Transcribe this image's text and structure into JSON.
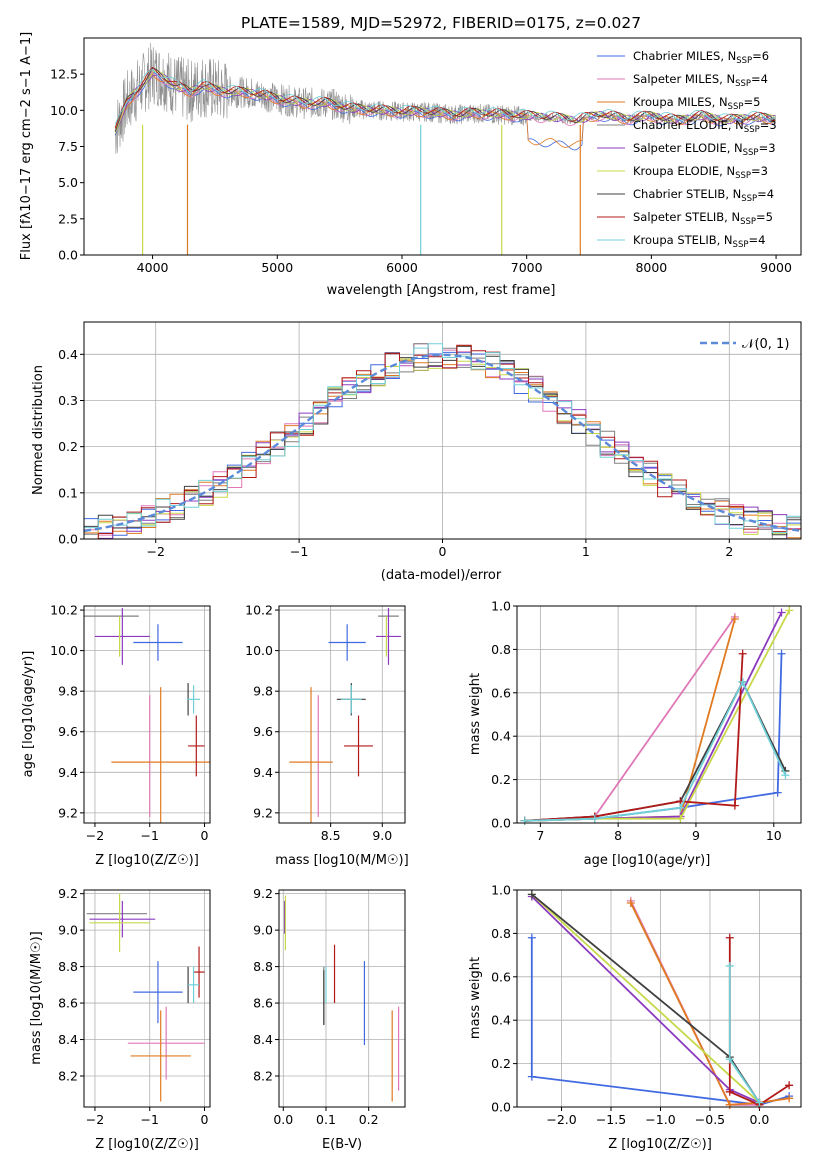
{
  "colors": {
    "c0": "#4169e1",
    "c1": "#e078b8",
    "c2": "#e07a20",
    "c3": "#808080",
    "c4": "#8b3ac0",
    "c5": "#c8d84a",
    "c6": "#404040",
    "c7": "#b21a1a",
    "c8": "#70d0d8"
  },
  "chart_data": [
    {
      "type": "line",
      "title": "PLATE=1589, MJD=52972, FIBERID=0175, z=0.027",
      "xlabel": "wavelength [Angstrom, rest frame]",
      "ylabel": "Flux [fλ10−17 erg cm−2 s−1 A−1]",
      "xlim": [
        3450,
        9200
      ],
      "ylim": [
        0,
        15
      ],
      "xticks": [
        4000,
        5000,
        6000,
        7000,
        8000,
        9000
      ],
      "yticks": [
        0.0,
        2.5,
        5.0,
        7.5,
        10.0,
        12.5
      ],
      "xtick_labels": [
        "4000",
        "5000",
        "6000",
        "7000",
        "8000",
        "9000"
      ],
      "ytick_labels": [
        "0.0",
        "2.5",
        "5.0",
        "7.5",
        "10.0",
        "12.5"
      ],
      "legend_position": "right",
      "series_names": [
        "Chabrier MILES, N_SSP=6",
        "Salpeter MILES, N_SSP=4",
        "Kroupa MILES, N_SSP=5",
        "Chabrier ELODIE, N_SSP=3",
        "Salpeter ELODIE, N_SSP=3",
        "Kroupa ELODIE, N_SSP=3",
        "Chabrier STELIB, N_SSP=4",
        "Salpeter STELIB, N_SSP=5",
        "Kroupa STELIB, N_SSP=4"
      ],
      "legend_entries": [
        {
          "name": "Chabrier MILES, N",
          "sub": "SSP",
          "val": "=6"
        },
        {
          "name": "Salpeter MILES, N",
          "sub": "SSP",
          "val": "=4"
        },
        {
          "name": "Kroupa MILES, N",
          "sub": "SSP",
          "val": "=5"
        },
        {
          "name": "Chabrier ELODIE, N",
          "sub": "SSP",
          "val": "=3"
        },
        {
          "name": "Salpeter ELODIE, N",
          "sub": "SSP",
          "val": "=3"
        },
        {
          "name": "Kroupa ELODIE, N",
          "sub": "SSP",
          "val": "=3"
        },
        {
          "name": "Chabrier STELIB, N",
          "sub": "SSP",
          "val": "=4"
        },
        {
          "name": "Salpeter STELIB, N",
          "sub": "SSP",
          "val": "=5"
        },
        {
          "name": "Kroupa STELIB, N",
          "sub": "SSP",
          "val": "=4"
        }
      ],
      "model_flux_anchors_x": [
        3700,
        3800,
        3900,
        4000,
        4100,
        4200,
        4300,
        4400,
        4500,
        4600,
        4800,
        5000,
        5200,
        5400,
        5600,
        5800,
        6000,
        6200,
        6400,
        6600,
        6800,
        7000,
        7200,
        7400,
        7600,
        7800,
        8000,
        8200,
        8400,
        8600,
        8800,
        9000
      ],
      "model_flux_anchors_y": [
        8.6,
        10.6,
        11.6,
        12.6,
        12.2,
        11.6,
        11.3,
        11.7,
        11.4,
        11.3,
        11.2,
        10.8,
        10.5,
        10.5,
        10.1,
        10.0,
        9.9,
        9.9,
        9.7,
        9.8,
        9.7,
        9.6,
        9.5,
        9.3,
        9.7,
        9.4,
        9.6,
        9.3,
        9.6,
        9.3,
        9.5,
        9.4
      ]
    },
    {
      "type": "histogram",
      "xlabel": "(data-model)/error",
      "ylabel": "Normed distribution",
      "xlim": [
        -2.5,
        2.5
      ],
      "ylim": [
        0,
        0.47
      ],
      "xticks": [
        -2,
        -1,
        0,
        1,
        2
      ],
      "yticks": [
        0.0,
        0.1,
        0.2,
        0.3,
        0.4
      ],
      "xtick_labels": [
        "−2",
        "−1",
        "0",
        "1",
        "2"
      ],
      "ytick_labels": [
        "0.0",
        "0.1",
        "0.2",
        "0.3",
        "0.4"
      ],
      "reference_curve": "N(0,1)",
      "legend_label": "𝒩(0, 1)",
      "bin_width": 0.1
    },
    {
      "type": "scatter",
      "xlabel": "Z [log10(Z/Z☉)]",
      "ylabel": "age [log10(age/yr)]",
      "xlim": [
        -2.2,
        0.1
      ],
      "ylim": [
        9.15,
        10.22
      ],
      "xticks": [
        -2,
        -1,
        0
      ],
      "yticks": [
        9.2,
        9.4,
        9.6,
        9.8,
        10.0,
        10.2
      ],
      "xtick_labels": [
        "−2",
        "−1",
        "0"
      ],
      "ytick_labels": [
        "9.2",
        "9.4",
        "9.6",
        "9.8",
        "10.0",
        "10.2"
      ],
      "points": [
        {
          "x": -0.85,
          "y": 10.04,
          "xerr": 0.45,
          "yerr": 0.09,
          "c": "c0"
        },
        {
          "x": -1.0,
          "y": 9.48,
          "xerr": 0.0,
          "yerr": 0.3,
          "c": "c1"
        },
        {
          "x": -0.8,
          "y": 9.45,
          "xerr": 0.9,
          "yerr": 0.37,
          "c": "c2"
        },
        {
          "x": -1.75,
          "y": 10.17,
          "xerr": 0.55,
          "yerr": 0.0,
          "c": "c3"
        },
        {
          "x": -1.5,
          "y": 10.07,
          "xerr": 0.5,
          "yerr": 0.14,
          "c": "c4"
        },
        {
          "x": -1.55,
          "y": 10.07,
          "xerr": 0.0,
          "yerr": 0.1,
          "c": "c5"
        },
        {
          "x": -0.3,
          "y": 9.76,
          "xerr": 0.0,
          "yerr": 0.08,
          "c": "c6"
        },
        {
          "x": -0.15,
          "y": 9.53,
          "xerr": 0.15,
          "yerr": 0.15,
          "c": "c7"
        },
        {
          "x": -0.2,
          "y": 9.76,
          "xerr": 0.12,
          "yerr": 0.07,
          "c": "c8"
        }
      ]
    },
    {
      "type": "scatter",
      "xlabel": "mass [log10(M/M☉)]",
      "ylabel": "",
      "xlim": [
        8.0,
        9.22
      ],
      "ylim": [
        9.15,
        10.22
      ],
      "xticks": [
        8.5,
        9.0
      ],
      "yticks": [
        9.2,
        9.4,
        9.6,
        9.8,
        10.0,
        10.2
      ],
      "xtick_labels": [
        "8.5",
        "9.0"
      ],
      "ytick_labels": [
        "9.2",
        "9.4",
        "9.6",
        "9.8",
        "10.0",
        "10.2"
      ],
      "points": [
        {
          "x": 8.66,
          "y": 10.04,
          "xerr": 0.18,
          "yerr": 0.09,
          "c": "c0"
        },
        {
          "x": 8.38,
          "y": 9.48,
          "xerr": 0.0,
          "yerr": 0.3,
          "c": "c1"
        },
        {
          "x": 8.31,
          "y": 9.45,
          "xerr": 0.21,
          "yerr": 0.37,
          "c": "c2"
        },
        {
          "x": 9.06,
          "y": 10.17,
          "xerr": 0.1,
          "yerr": 0.0,
          "c": "c3"
        },
        {
          "x": 9.06,
          "y": 10.07,
          "xerr": 0.12,
          "yerr": 0.14,
          "c": "c4"
        },
        {
          "x": 9.04,
          "y": 10.07,
          "xerr": 0.0,
          "yerr": 0.1,
          "c": "c5"
        },
        {
          "x": 8.7,
          "y": 9.76,
          "xerr": 0.14,
          "yerr": 0.08,
          "c": "c6"
        },
        {
          "x": 8.77,
          "y": 9.53,
          "xerr": 0.14,
          "yerr": 0.15,
          "c": "c7"
        },
        {
          "x": 8.7,
          "y": 9.76,
          "xerr": 0.1,
          "yerr": 0.07,
          "c": "c8"
        }
      ]
    },
    {
      "type": "line",
      "xlabel": "age [log10(age/yr)]",
      "ylabel": "mass weight",
      "xlim": [
        6.7,
        10.35
      ],
      "ylim": [
        0,
        1.0
      ],
      "xticks": [
        7,
        8,
        9,
        10
      ],
      "yticks": [
        0.0,
        0.2,
        0.4,
        0.6,
        0.8,
        1.0
      ],
      "xtick_labels": [
        "7",
        "8",
        "9",
        "10"
      ],
      "ytick_labels": [
        "0.0",
        "0.2",
        "0.4",
        "0.6",
        "0.8",
        "1.0"
      ],
      "series": [
        {
          "c": "c0",
          "x": [
            6.8,
            7.7,
            8.8,
            10.05,
            10.1
          ],
          "y": [
            0.01,
            0.02,
            0.07,
            0.14,
            0.78
          ]
        },
        {
          "c": "c1",
          "x": [
            6.8,
            7.7,
            9.5
          ],
          "y": [
            0.01,
            0.03,
            0.95
          ]
        },
        {
          "c": "c2",
          "x": [
            6.8,
            7.7,
            8.8,
            9.5
          ],
          "y": [
            0.01,
            0.02,
            0.03,
            0.94
          ]
        },
        {
          "c": "c4",
          "x": [
            6.8,
            7.7,
            8.8,
            10.1
          ],
          "y": [
            0.01,
            0.02,
            0.03,
            0.97
          ]
        },
        {
          "c": "c5",
          "x": [
            6.8,
            7.7,
            8.8,
            10.2
          ],
          "y": [
            0.01,
            0.02,
            0.02,
            0.98
          ]
        },
        {
          "c": "c6",
          "x": [
            6.8,
            7.7,
            8.8,
            9.6,
            10.15
          ],
          "y": [
            0.01,
            0.03,
            0.1,
            0.65,
            0.24
          ]
        },
        {
          "c": "c7",
          "x": [
            6.8,
            7.7,
            8.8,
            9.5,
            9.6
          ],
          "y": [
            0.01,
            0.03,
            0.1,
            0.08,
            0.78
          ]
        },
        {
          "c": "c8",
          "x": [
            6.8,
            7.7,
            8.8,
            9.6,
            10.15
          ],
          "y": [
            0.01,
            0.02,
            0.07,
            0.65,
            0.22
          ]
        }
      ]
    },
    {
      "type": "scatter",
      "xlabel": "Z [log10(Z/Z☉)]",
      "ylabel": "mass [log10(M/M☉)]",
      "xlim": [
        -2.2,
        0.1
      ],
      "ylim": [
        8.03,
        9.22
      ],
      "xticks": [
        -2,
        -1,
        0
      ],
      "yticks": [
        8.2,
        8.4,
        8.6,
        8.8,
        9.0,
        9.2
      ],
      "xtick_labels": [
        "−2",
        "−1",
        "0"
      ],
      "ytick_labels": [
        "8.2",
        "8.4",
        "8.6",
        "8.8",
        "9.0",
        "9.2"
      ],
      "points": [
        {
          "x": -0.85,
          "y": 8.66,
          "xerr": 0.45,
          "yerr": 0.17,
          "c": "c0"
        },
        {
          "x": -0.7,
          "y": 8.38,
          "xerr": 0.7,
          "yerr": 0.2,
          "c": "c1"
        },
        {
          "x": -0.8,
          "y": 8.31,
          "xerr": 0.55,
          "yerr": 0.25,
          "c": "c2"
        },
        {
          "x": -1.6,
          "y": 9.09,
          "xerr": 0.55,
          "yerr": 0.0,
          "c": "c3"
        },
        {
          "x": -1.5,
          "y": 9.06,
          "xerr": 0.6,
          "yerr": 0.1,
          "c": "c4"
        },
        {
          "x": -1.55,
          "y": 9.04,
          "xerr": 0.55,
          "yerr": 0.16,
          "c": "c5"
        },
        {
          "x": -0.3,
          "y": 8.7,
          "xerr": 0.0,
          "yerr": 0.1,
          "c": "c6"
        },
        {
          "x": -0.1,
          "y": 8.77,
          "xerr": 0.1,
          "yerr": 0.14,
          "c": "c7"
        },
        {
          "x": -0.2,
          "y": 8.7,
          "xerr": 0.1,
          "yerr": 0.1,
          "c": "c8"
        }
      ]
    },
    {
      "type": "scatter",
      "xlabel": "E(B-V)",
      "ylabel": "",
      "xlim": [
        -0.01,
        0.285
      ],
      "ylim": [
        8.03,
        9.22
      ],
      "xticks": [
        0.0,
        0.1,
        0.2
      ],
      "yticks": [
        8.2,
        8.4,
        8.6,
        8.8,
        9.0,
        9.2
      ],
      "xtick_labels": [
        "0.0",
        "0.1",
        "0.2"
      ],
      "ytick_labels": [
        "8.2",
        "8.4",
        "8.6",
        "8.8",
        "9.0",
        "9.2"
      ],
      "points": [
        {
          "x": 0.19,
          "y": 8.6,
          "xerr": 0,
          "yerr": 0.23,
          "c": "c0"
        },
        {
          "x": 0.27,
          "y": 8.35,
          "xerr": 0,
          "yerr": 0.23,
          "c": "c1"
        },
        {
          "x": 0.255,
          "y": 8.31,
          "xerr": 0,
          "yerr": 0.25,
          "c": "c2"
        },
        {
          "x": 0.095,
          "y": 8.64,
          "xerr": 0,
          "yerr": 0.16,
          "c": "c3"
        },
        {
          "x": 0.003,
          "y": 9.07,
          "xerr": 0,
          "yerr": 0.09,
          "c": "c4"
        },
        {
          "x": 0.005,
          "y": 9.04,
          "xerr": 0,
          "yerr": 0.15,
          "c": "c5"
        },
        {
          "x": 0.095,
          "y": 8.63,
          "xerr": 0,
          "yerr": 0.15,
          "c": "c6"
        },
        {
          "x": 0.12,
          "y": 8.76,
          "xerr": 0,
          "yerr": 0.16,
          "c": "c7"
        },
        {
          "x": 0.1,
          "y": 8.7,
          "xerr": 0,
          "yerr": 0.1,
          "c": "c8"
        }
      ]
    },
    {
      "type": "line",
      "xlabel": "Z [log10(Z/Z☉)]",
      "ylabel": "mass weight",
      "xlim": [
        -2.45,
        0.42
      ],
      "ylim": [
        0,
        1.0
      ],
      "xticks": [
        -2.0,
        -1.5,
        -1.0,
        -0.5,
        0.0
      ],
      "yticks": [
        0.0,
        0.2,
        0.4,
        0.6,
        0.8,
        1.0
      ],
      "xtick_labels": [
        "−2.0",
        "−1.5",
        "−1.0",
        "−0.5",
        "0.0"
      ],
      "ytick_labels": [
        "0.0",
        "0.2",
        "0.4",
        "0.6",
        "0.8",
        "1.0"
      ],
      "series": [
        {
          "c": "c0",
          "x": [
            -2.3,
            -2.3,
            0.0,
            0.3
          ],
          "y": [
            0.78,
            0.14,
            0.01,
            0.05
          ]
        },
        {
          "c": "c1",
          "x": [
            -1.3,
            -0.3,
            0.0
          ],
          "y": [
            0.95,
            0.01,
            0.01
          ]
        },
        {
          "c": "c2",
          "x": [
            -1.3,
            -0.3,
            0.0,
            0.3
          ],
          "y": [
            0.94,
            0.01,
            0.02,
            0.04
          ]
        },
        {
          "c": "c4",
          "x": [
            -2.3,
            -0.3,
            0.0
          ],
          "y": [
            0.97,
            0.08,
            0.02
          ]
        },
        {
          "c": "c5",
          "x": [
            -2.3,
            0.0
          ],
          "y": [
            0.98,
            0.02
          ]
        },
        {
          "c": "c6",
          "x": [
            -2.3,
            -0.3,
            0.0
          ],
          "y": [
            0.98,
            0.23,
            0.02
          ]
        },
        {
          "c": "c7",
          "x": [
            -0.3,
            -0.3,
            0.0,
            0.3
          ],
          "y": [
            0.78,
            0.07,
            0.01,
            0.1
          ]
        },
        {
          "c": "c8",
          "x": [
            -0.3,
            -0.3,
            0.0
          ],
          "y": [
            0.65,
            0.22,
            0.02
          ]
        }
      ]
    }
  ]
}
